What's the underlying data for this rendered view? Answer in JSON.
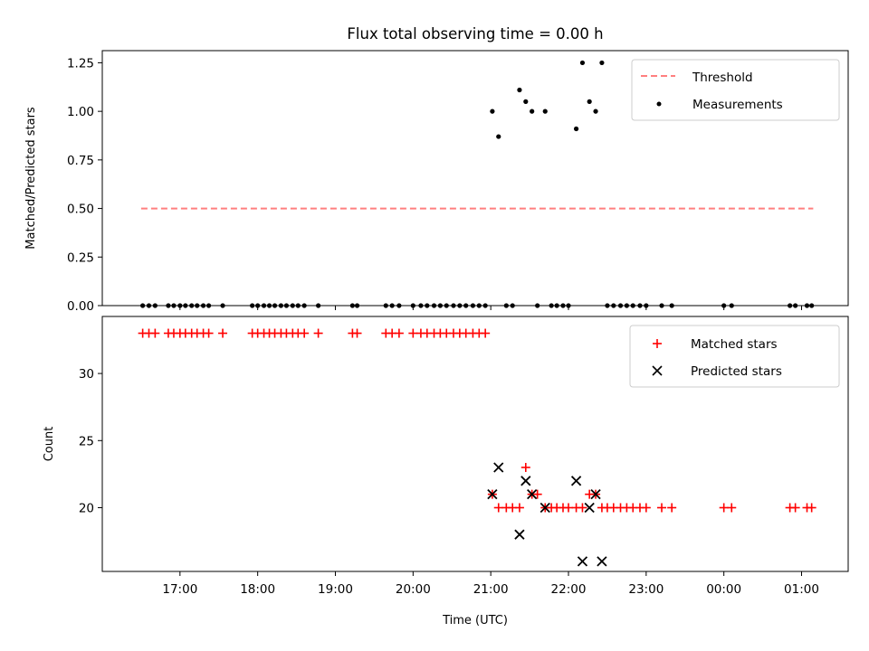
{
  "chart_data": [
    {
      "type": "scatter",
      "title": "Flux total observing time = 0.00 h",
      "xlabel": "",
      "ylabel": "Matched/Predicted stars",
      "xlim": [
        16.0,
        25.6
      ],
      "ylim": [
        0.0,
        1.3125
      ],
      "yticks": [
        0.0,
        0.25,
        0.5,
        0.75,
        1.0,
        1.25
      ],
      "ytick_labels": [
        "0.00",
        "0.25",
        "0.50",
        "0.75",
        "1.00",
        "1.25"
      ],
      "legend_position": "top-right",
      "threshold": {
        "name": "Threshold",
        "color": "#ff7f7f",
        "y": 0.5,
        "x": [
          16.5,
          25.15
        ]
      },
      "measurements": {
        "name": "Measurements",
        "color": "#000000",
        "points": [
          [
            16.52,
            0
          ],
          [
            16.6,
            0
          ],
          [
            16.68,
            0
          ],
          [
            16.85,
            0
          ],
          [
            16.92,
            0
          ],
          [
            17.0,
            0
          ],
          [
            17.07,
            0
          ],
          [
            17.15,
            0
          ],
          [
            17.22,
            0
          ],
          [
            17.3,
            0
          ],
          [
            17.37,
            0
          ],
          [
            17.55,
            0
          ],
          [
            17.93,
            0
          ],
          [
            18.0,
            0
          ],
          [
            18.08,
            0
          ],
          [
            18.15,
            0
          ],
          [
            18.22,
            0
          ],
          [
            18.3,
            0
          ],
          [
            18.37,
            0
          ],
          [
            18.45,
            0
          ],
          [
            18.52,
            0
          ],
          [
            18.6,
            0
          ],
          [
            18.78,
            0
          ],
          [
            19.22,
            0
          ],
          [
            19.28,
            0
          ],
          [
            19.65,
            0
          ],
          [
            19.73,
            0
          ],
          [
            19.82,
            0
          ],
          [
            20.0,
            0
          ],
          [
            20.1,
            0
          ],
          [
            20.18,
            0
          ],
          [
            20.27,
            0
          ],
          [
            20.35,
            0
          ],
          [
            20.43,
            0
          ],
          [
            20.52,
            0
          ],
          [
            20.6,
            0
          ],
          [
            20.68,
            0
          ],
          [
            20.77,
            0
          ],
          [
            20.85,
            0
          ],
          [
            20.93,
            0
          ],
          [
            21.02,
            1.0
          ],
          [
            21.1,
            0.87
          ],
          [
            21.2,
            0
          ],
          [
            21.28,
            0
          ],
          [
            21.37,
            1.11
          ],
          [
            21.45,
            1.05
          ],
          [
            21.53,
            1.0
          ],
          [
            21.6,
            0
          ],
          [
            21.7,
            1.0
          ],
          [
            21.78,
            0
          ],
          [
            21.85,
            0
          ],
          [
            21.93,
            0
          ],
          [
            22.0,
            0
          ],
          [
            22.1,
            0.91
          ],
          [
            22.18,
            1.25
          ],
          [
            22.27,
            1.05
          ],
          [
            22.35,
            1.0
          ],
          [
            22.43,
            1.25
          ],
          [
            22.5,
            0
          ],
          [
            22.58,
            0
          ],
          [
            22.67,
            0
          ],
          [
            22.75,
            0
          ],
          [
            22.83,
            0
          ],
          [
            22.92,
            0
          ],
          [
            23.0,
            0
          ],
          [
            23.2,
            0
          ],
          [
            23.33,
            0
          ],
          [
            24.0,
            0
          ],
          [
            24.1,
            0
          ],
          [
            24.85,
            0
          ],
          [
            24.92,
            0
          ],
          [
            25.07,
            0
          ],
          [
            25.13,
            0
          ]
        ]
      }
    },
    {
      "type": "scatter",
      "title": "",
      "xlabel": "Time (UTC)",
      "ylabel": "Count",
      "xlim": [
        16.0,
        25.6
      ],
      "ylim": [
        15.25,
        34.25
      ],
      "yticks": [
        20,
        25,
        30
      ],
      "ytick_labels": [
        "20",
        "25",
        "30"
      ],
      "xticks": [
        17,
        18,
        19,
        20,
        21,
        22,
        23,
        24,
        25
      ],
      "xtick_labels": [
        "17:00",
        "18:00",
        "19:00",
        "20:00",
        "21:00",
        "22:00",
        "23:00",
        "00:00",
        "01:00"
      ],
      "legend_position": "top-right",
      "series": [
        {
          "name": "Matched stars",
          "color": "#ff0000",
          "marker": "plus",
          "points": [
            [
              16.52,
              33
            ],
            [
              16.6,
              33
            ],
            [
              16.68,
              33
            ],
            [
              16.85,
              33
            ],
            [
              16.92,
              33
            ],
            [
              17.0,
              33
            ],
            [
              17.07,
              33
            ],
            [
              17.15,
              33
            ],
            [
              17.22,
              33
            ],
            [
              17.3,
              33
            ],
            [
              17.37,
              33
            ],
            [
              17.55,
              33
            ],
            [
              17.93,
              33
            ],
            [
              18.0,
              33
            ],
            [
              18.08,
              33
            ],
            [
              18.15,
              33
            ],
            [
              18.22,
              33
            ],
            [
              18.3,
              33
            ],
            [
              18.37,
              33
            ],
            [
              18.45,
              33
            ],
            [
              18.52,
              33
            ],
            [
              18.6,
              33
            ],
            [
              18.78,
              33
            ],
            [
              19.22,
              33
            ],
            [
              19.28,
              33
            ],
            [
              19.65,
              33
            ],
            [
              19.73,
              33
            ],
            [
              19.82,
              33
            ],
            [
              20.0,
              33
            ],
            [
              20.1,
              33
            ],
            [
              20.18,
              33
            ],
            [
              20.27,
              33
            ],
            [
              20.35,
              33
            ],
            [
              20.43,
              33
            ],
            [
              20.52,
              33
            ],
            [
              20.6,
              33
            ],
            [
              20.68,
              33
            ],
            [
              20.77,
              33
            ],
            [
              20.85,
              33
            ],
            [
              20.93,
              33
            ],
            [
              21.02,
              21
            ],
            [
              21.1,
              20
            ],
            [
              21.2,
              20
            ],
            [
              21.28,
              20
            ],
            [
              21.37,
              20
            ],
            [
              21.45,
              23
            ],
            [
              21.53,
              21
            ],
            [
              21.6,
              21
            ],
            [
              21.7,
              20
            ],
            [
              21.78,
              20
            ],
            [
              21.85,
              20
            ],
            [
              21.93,
              20
            ],
            [
              22.0,
              20
            ],
            [
              22.1,
              20
            ],
            [
              22.18,
              20
            ],
            [
              22.27,
              21
            ],
            [
              22.35,
              21
            ],
            [
              22.43,
              20
            ],
            [
              22.5,
              20
            ],
            [
              22.58,
              20
            ],
            [
              22.67,
              20
            ],
            [
              22.75,
              20
            ],
            [
              22.83,
              20
            ],
            [
              22.92,
              20
            ],
            [
              23.0,
              20
            ],
            [
              23.2,
              20
            ],
            [
              23.33,
              20
            ],
            [
              24.0,
              20
            ],
            [
              24.1,
              20
            ],
            [
              24.85,
              20
            ],
            [
              24.92,
              20
            ],
            [
              25.07,
              20
            ],
            [
              25.13,
              20
            ]
          ]
        },
        {
          "name": "Predicted stars",
          "color": "#000000",
          "marker": "x",
          "points": [
            [
              21.02,
              21
            ],
            [
              21.1,
              23
            ],
            [
              21.37,
              18
            ],
            [
              21.45,
              22
            ],
            [
              21.53,
              21
            ],
            [
              21.7,
              20
            ],
            [
              22.1,
              22
            ],
            [
              22.18,
              16
            ],
            [
              22.27,
              20
            ],
            [
              22.35,
              21
            ],
            [
              22.43,
              16
            ]
          ]
        }
      ]
    }
  ]
}
